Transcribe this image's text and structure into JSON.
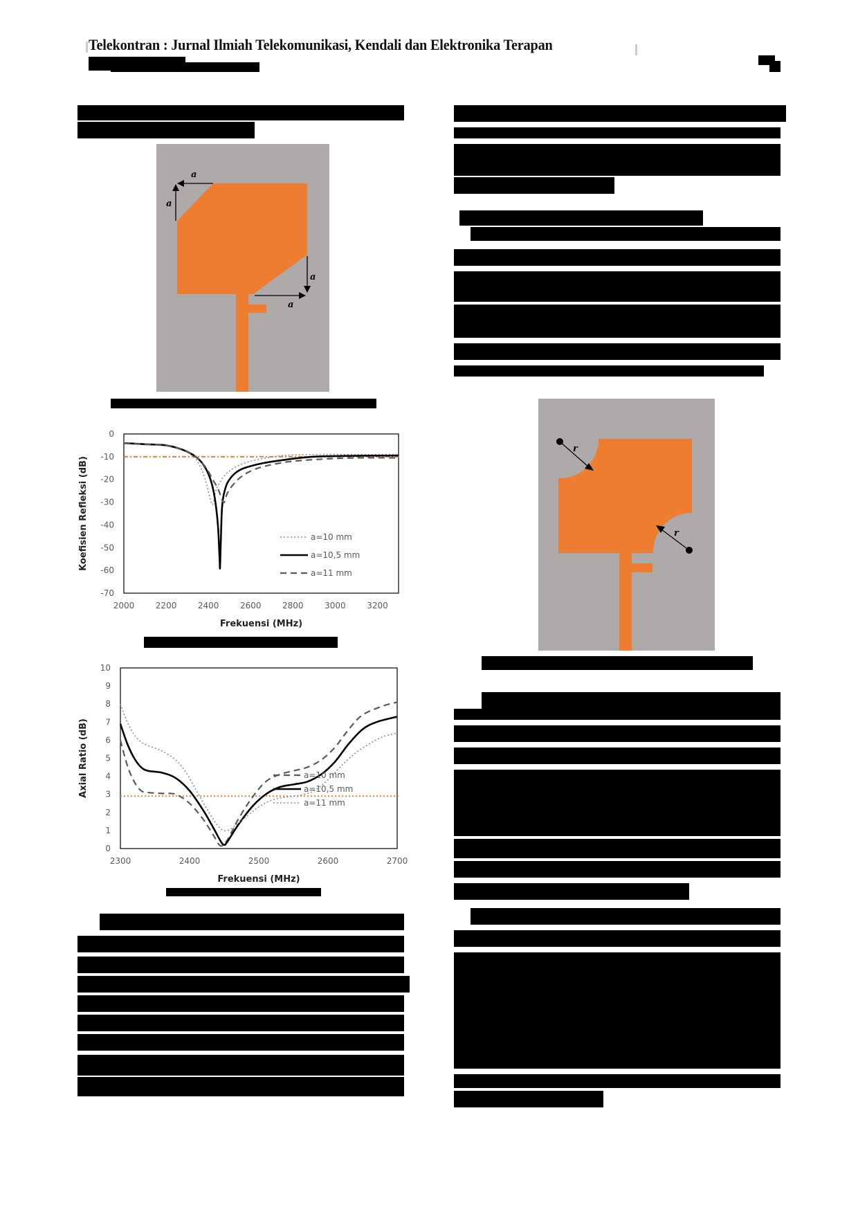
{
  "header": {
    "journal_title": "Telekontran : Jurnal Ilmiah Telekomunikasi, Kendali dan Elektronika Terapan",
    "volume_info": "[redacted]",
    "page_number": "[redacted]"
  },
  "figures": {
    "antenna_chamfered": {
      "labels": [
        "a",
        "a",
        "a",
        "a"
      ],
      "caption": "[redacted]",
      "substrate_color": "#aeaaa9",
      "patch_color": "#ed7d31"
    },
    "antenna_circular_cut": {
      "labels": [
        "r",
        "r"
      ],
      "caption": "[redacted]",
      "substrate_color": "#aeaaa9",
      "patch_color": "#ed7d31"
    }
  },
  "chart_data": [
    {
      "type": "line",
      "title": "",
      "xlabel": "Frekuensi (MHz)",
      "ylabel": "Koefisien Refleksi (dB)",
      "xlim": [
        2000,
        3300
      ],
      "ylim": [
        -70,
        0
      ],
      "x_ticks": [
        "2000",
        "2200",
        "2400",
        "2600",
        "2800",
        "3000",
        "3200"
      ],
      "y_ticks": [
        "0",
        "-10",
        "-20",
        "-30",
        "-40",
        "-50",
        "-60",
        "-70"
      ],
      "grid": false,
      "legend_position": "inside-lower-right",
      "reference_line": {
        "y": -10,
        "color": "#ed7d31",
        "style": "dash-dot"
      },
      "series": [
        {
          "name": "a=10 mm",
          "style": "dotted",
          "color": "#8c8c8c",
          "x": [
            2000,
            2100,
            2200,
            2280,
            2330,
            2360,
            2385,
            2405,
            2420,
            2435,
            2450,
            2480,
            2520,
            2580,
            2650,
            2750,
            2900,
            3100,
            3300
          ],
          "y": [
            -4,
            -4.5,
            -5,
            -7,
            -10,
            -14,
            -20,
            -27,
            -31,
            -25,
            -22,
            -18,
            -15,
            -12.5,
            -11,
            -9.5,
            -9,
            -9,
            -9
          ]
        },
        {
          "name": "a=10,5 mm",
          "style": "solid",
          "color": "#000000",
          "x": [
            2000,
            2100,
            2200,
            2280,
            2340,
            2380,
            2410,
            2430,
            2445,
            2453,
            2455,
            2458,
            2465,
            2480,
            2500,
            2530,
            2570,
            2650,
            2750,
            2900,
            3100,
            3300
          ],
          "y": [
            -4,
            -4.5,
            -5,
            -7,
            -10,
            -14,
            -20,
            -28,
            -40,
            -55,
            -59,
            -50,
            -32,
            -24,
            -20,
            -17,
            -15,
            -13,
            -11.5,
            -10,
            -9.6,
            -9.5
          ]
        },
        {
          "name": "a=11 mm",
          "style": "dashed",
          "color": "#595959",
          "x": [
            2000,
            2100,
            2200,
            2280,
            2340,
            2390,
            2420,
            2445,
            2465,
            2475,
            2490,
            2520,
            2560,
            2620,
            2700,
            2800,
            2950,
            3100,
            3300
          ],
          "y": [
            -4,
            -4.5,
            -5,
            -7,
            -10,
            -15,
            -20,
            -24,
            -29,
            -30,
            -26,
            -22,
            -18.5,
            -15.5,
            -13.5,
            -12,
            -11,
            -10.5,
            -10.5
          ]
        }
      ]
    },
    {
      "type": "line",
      "title": "",
      "xlabel": "Frekuensi (MHz)",
      "ylabel": "Axial Ratio (dB)",
      "xlim": [
        2300,
        2700
      ],
      "ylim": [
        0,
        10
      ],
      "x_ticks": [
        "2300",
        "2400",
        "2500",
        "2600",
        "2700"
      ],
      "y_ticks": [
        "10",
        "9",
        "8",
        "7",
        "6",
        "5",
        "4",
        "3",
        "2",
        "1",
        "0"
      ],
      "grid": false,
      "legend_position": "inside-lower-right",
      "reference_line": {
        "y": 2.9,
        "color": "#ed7d31",
        "style": "dotted"
      },
      "series": [
        {
          "name": "a=10 mm",
          "style": "dashed",
          "color": "#595959",
          "x": [
            2300,
            2310,
            2320,
            2330,
            2340,
            2360,
            2380,
            2400,
            2420,
            2435,
            2445,
            2455,
            2470,
            2490,
            2510,
            2530,
            2550,
            2570,
            2590,
            2610,
            2630,
            2650,
            2680,
            2700
          ],
          "y": [
            6,
            4.6,
            3.7,
            3.2,
            3.1,
            3.05,
            3.0,
            2.5,
            1.6,
            0.7,
            0.15,
            0.5,
            1.6,
            2.8,
            3.7,
            4.1,
            4.3,
            4.5,
            4.9,
            5.6,
            6.6,
            7.4,
            7.9,
            8.1
          ]
        },
        {
          "name": "a=10,5 mm",
          "style": "solid",
          "color": "#000000",
          "x": [
            2300,
            2310,
            2320,
            2330,
            2340,
            2360,
            2380,
            2400,
            2420,
            2435,
            2445,
            2450,
            2455,
            2470,
            2490,
            2510,
            2530,
            2550,
            2570,
            2590,
            2610,
            2630,
            2650,
            2670,
            2700
          ],
          "y": [
            6.9,
            5.8,
            5.0,
            4.5,
            4.3,
            4.2,
            3.9,
            3.2,
            2.1,
            1.1,
            0.4,
            0.2,
            0.4,
            1.3,
            2.3,
            3.0,
            3.4,
            3.55,
            3.7,
            4.1,
            4.8,
            5.8,
            6.6,
            7.0,
            7.3
          ]
        },
        {
          "name": "a=11 mm",
          "style": "dotted",
          "color": "#8c8c8c",
          "x": [
            2300,
            2310,
            2320,
            2330,
            2340,
            2360,
            2380,
            2395,
            2410,
            2425,
            2440,
            2450,
            2460,
            2480,
            2500,
            2520,
            2540,
            2560,
            2580,
            2600,
            2620,
            2640,
            2660,
            2680,
            2700
          ],
          "y": [
            8.0,
            7.0,
            6.3,
            5.9,
            5.7,
            5.4,
            4.9,
            4.2,
            3.2,
            2.2,
            1.3,
            1.0,
            1.1,
            1.7,
            2.3,
            2.7,
            2.85,
            2.95,
            3.2,
            3.8,
            4.6,
            5.3,
            5.8,
            6.2,
            6.4
          ]
        }
      ]
    }
  ],
  "text_blocks": {
    "note": "All body text in the page is redacted (rendered as black bars)."
  }
}
